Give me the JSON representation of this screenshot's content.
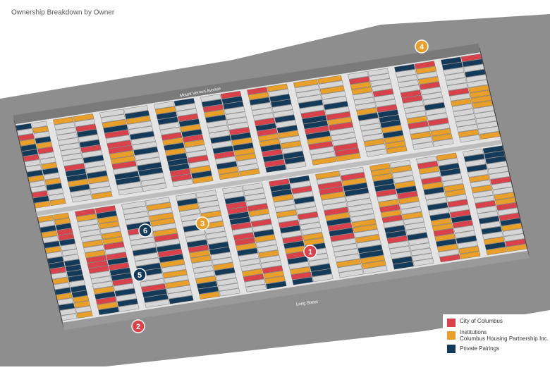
{
  "header": {
    "title": "Ownership Breakdown by Owner"
  },
  "streets": [
    "Mount Vernon Avenue",
    "Long Street"
  ],
  "markers": [
    {
      "label": "1"
    },
    {
      "label": "2"
    },
    {
      "label": "3"
    },
    {
      "label": "4"
    },
    {
      "label": "5"
    },
    {
      "label": "6"
    }
  ],
  "legend": [
    {
      "label": "City of Columbus"
    },
    {
      "label": "Institutions",
      "sublabel": "Columbus Housing Partnership Inc."
    },
    {
      "label": "Private Pairings"
    }
  ]
}
